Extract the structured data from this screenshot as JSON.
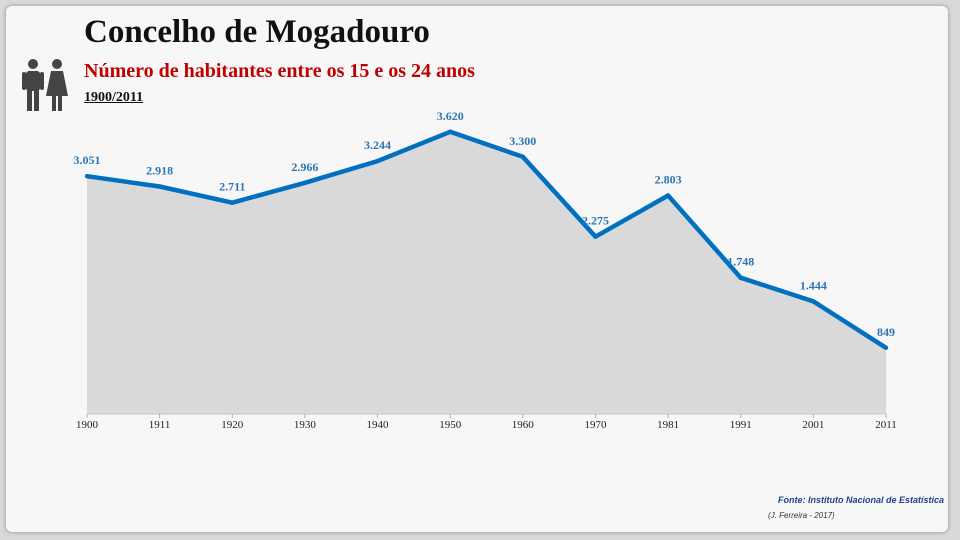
{
  "header": {
    "title": "Concelho de Mogadouro",
    "subtitle": "Número de habitantes entre os 15 e os 24 anos",
    "period": "1900/2011"
  },
  "icon": "people-icon",
  "footer": {
    "source": "Fonte: Instituto Nacional de Estatística",
    "credit": "(J. Ferreira - 2017)"
  },
  "colors": {
    "line": "#0070c0",
    "area": "#d9d9d9",
    "subtitle": "#c00000",
    "labels": "#2e75b6"
  },
  "chart_data": {
    "type": "area",
    "title": "Concelho de Mogadouro",
    "subtitle": "Número de habitantes entre os 15 e os 24 anos",
    "categories": [
      "1900",
      "1911",
      "1920",
      "1930",
      "1940",
      "1950",
      "1960",
      "1970",
      "1981",
      "1991",
      "2001",
      "2011"
    ],
    "values": [
      3051,
      2918,
      2711,
      2966,
      3244,
      3620,
      3300,
      2275,
      2803,
      1748,
      1444,
      849
    ],
    "data_labels": [
      "3.051",
      "2.918",
      "2.711",
      "2.966",
      "3.244",
      "3.620",
      "3.300",
      "2.275",
      "2.803",
      "1.748",
      "1.444",
      "849"
    ],
    "ylim": [
      0,
      3900
    ],
    "grid": false,
    "legend": "none"
  }
}
